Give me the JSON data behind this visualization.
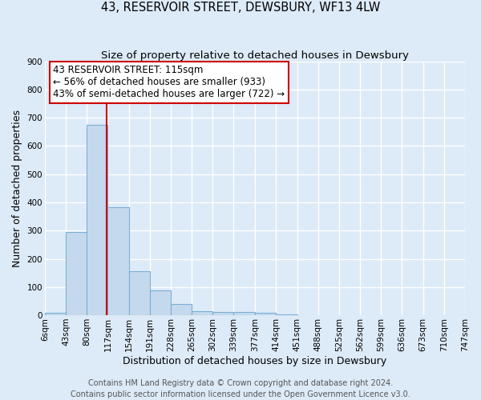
{
  "title": "43, RESERVOIR STREET, DEWSBURY, WF13 4LW",
  "subtitle": "Size of property relative to detached houses in Dewsbury",
  "xlabel": "Distribution of detached houses by size in Dewsbury",
  "ylabel": "Number of detached properties",
  "bin_edges": [
    6,
    43,
    80,
    117,
    154,
    191,
    228,
    265,
    302,
    339,
    377,
    414,
    451,
    488,
    525,
    562,
    599,
    636,
    673,
    710,
    747
  ],
  "bin_labels": [
    "6sqm",
    "43sqm",
    "80sqm",
    "117sqm",
    "154sqm",
    "191sqm",
    "228sqm",
    "265sqm",
    "302sqm",
    "339sqm",
    "377sqm",
    "414sqm",
    "451sqm",
    "488sqm",
    "525sqm",
    "562sqm",
    "599sqm",
    "636sqm",
    "673sqm",
    "710sqm",
    "747sqm"
  ],
  "bar_heights": [
    8,
    295,
    675,
    383,
    155,
    88,
    40,
    15,
    12,
    12,
    8,
    3,
    0,
    0,
    0,
    0,
    0,
    0,
    0,
    0
  ],
  "bar_color": "#c5d9ee",
  "bar_edge_color": "#7aafd4",
  "vline_x": 115,
  "vline_color": "#cc0000",
  "ylim": [
    0,
    900
  ],
  "yticks": [
    0,
    100,
    200,
    300,
    400,
    500,
    600,
    700,
    800,
    900
  ],
  "annotation_line1": "43 RESERVOIR STREET: 115sqm",
  "annotation_line2": "← 56% of detached houses are smaller (933)",
  "annotation_line3": "43% of semi-detached houses are larger (722) →",
  "annotation_box_edgecolor": "#cc0000",
  "footer_line1": "Contains HM Land Registry data © Crown copyright and database right 2024.",
  "footer_line2": "Contains public sector information licensed under the Open Government Licence v3.0.",
  "background_color": "#ddeaf7",
  "plot_bg_color": "#ddeaf7",
  "grid_color": "white",
  "title_fontsize": 10.5,
  "subtitle_fontsize": 9.5,
  "axis_label_fontsize": 9,
  "tick_fontsize": 7.5,
  "annotation_fontsize": 8.5,
  "footer_fontsize": 7
}
